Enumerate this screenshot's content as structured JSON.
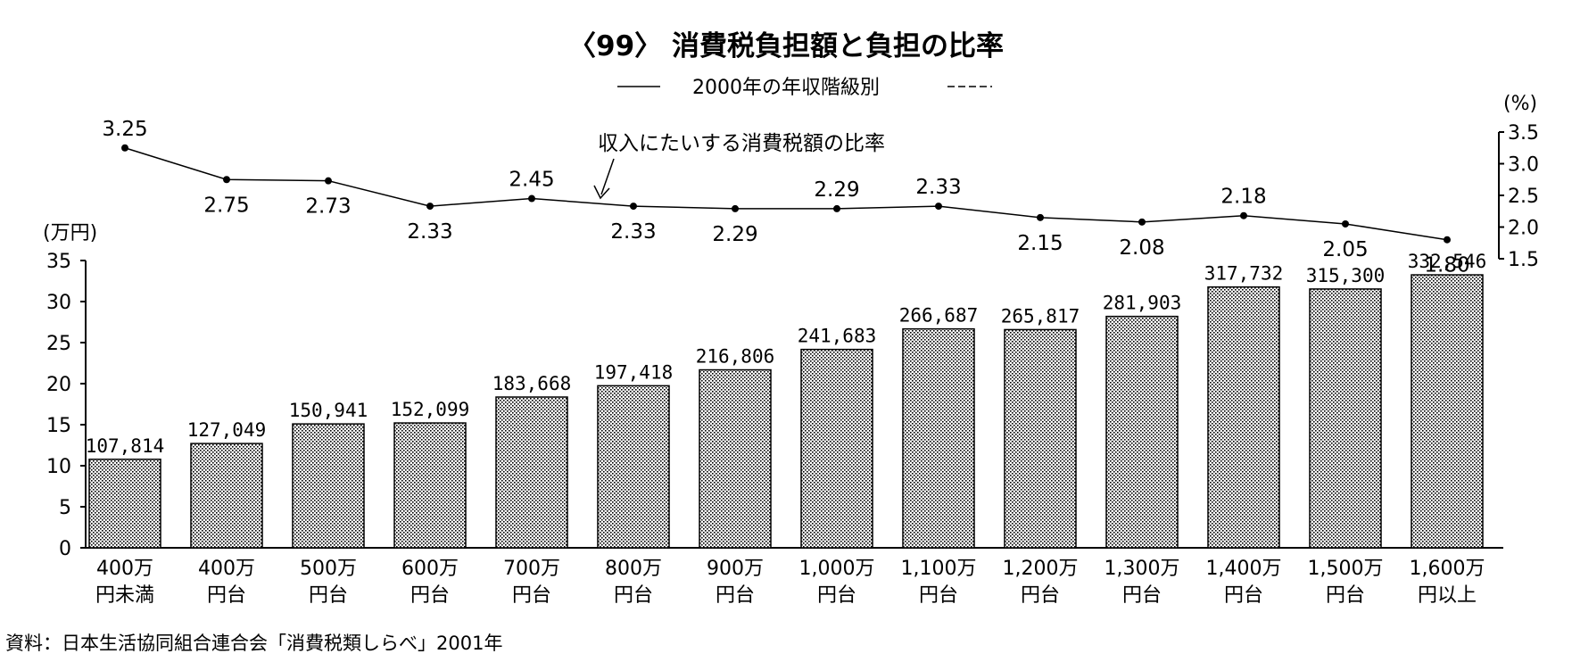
{
  "chart_data": {
    "type": "bar",
    "title": "〈99〉 消費税負担額と負担の比率",
    "subtitle": "2000年の年収階級別",
    "y_unit_label": "(万円)",
    "y2_unit_label": "(%)",
    "ylim": [
      0,
      35
    ],
    "y_ticks": [
      "0",
      "5",
      "10",
      "15",
      "20",
      "25",
      "30",
      "35"
    ],
    "y2lim": [
      1.5,
      3.5
    ],
    "y2_ticks": [
      "1.5",
      "2.0",
      "2.5",
      "3.0",
      "3.5"
    ],
    "line_annotation": "収入にたいする消費税額の比率",
    "categories": [
      [
        "400万",
        "円未満"
      ],
      [
        "400万",
        "円台"
      ],
      [
        "500万",
        "円台"
      ],
      [
        "600万",
        "円台"
      ],
      [
        "700万",
        "円台"
      ],
      [
        "800万",
        "円台"
      ],
      [
        "900万",
        "円台"
      ],
      [
        "1,000万",
        "円台"
      ],
      [
        "1,100万",
        "円台"
      ],
      [
        "1,200万",
        "円台"
      ],
      [
        "1,300万",
        "円台"
      ],
      [
        "1,400万",
        "円台"
      ],
      [
        "1,500万",
        "円台"
      ],
      [
        "1,600万",
        "円以上"
      ]
    ],
    "bar_series": {
      "values": [
        107814,
        127049,
        150941,
        152099,
        183668,
        197418,
        216806,
        241683,
        266687,
        265817,
        281903,
        317732,
        315300,
        332546
      ],
      "labels": [
        "107,814",
        "127,049",
        "150,941",
        "152,099",
        "183,668",
        "197,418",
        "216,806",
        "241,683",
        "266,687",
        "265,817",
        "281,903",
        "317,732",
        "315,300",
        "332,546"
      ]
    },
    "line_series": {
      "values": [
        3.25,
        2.75,
        2.73,
        2.33,
        2.45,
        2.33,
        2.29,
        2.29,
        2.33,
        2.15,
        2.08,
        2.18,
        2.05,
        1.8
      ],
      "labels": [
        "3.25",
        "2.75",
        "2.73",
        "2.33",
        "2.45",
        "2.33",
        "2.29",
        "2.29",
        "2.33",
        "2.15",
        "2.08",
        "2.18",
        "2.05",
        "1.80"
      ]
    },
    "grid": false,
    "source": "資料：日本生活協同組合連合会「消費税類しらべ」2001年"
  }
}
